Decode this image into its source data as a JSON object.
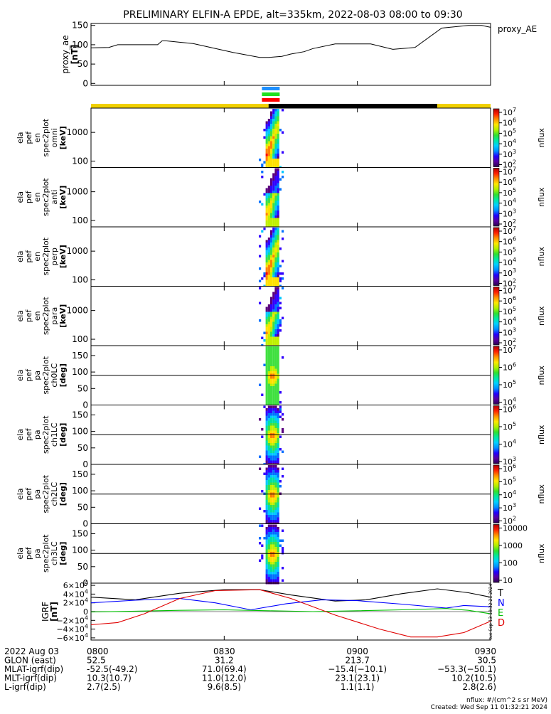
{
  "title": "PRELIMINARY ELFIN-A EPDE, alt=335km, 2022-08-03 08:00 to 09:30",
  "chart_data": [
    {
      "id": "proxy_ae",
      "type": "line",
      "ylabel": "proxy_ae",
      "yunit": "[nT]",
      "legend": "proxy_AE",
      "ylim": [
        -5,
        155
      ],
      "yticks": [
        0,
        50,
        100,
        150
      ],
      "x": [
        0,
        4,
        6,
        7,
        15,
        16,
        17,
        23,
        32,
        38,
        40,
        43,
        45,
        48,
        50,
        55,
        63,
        68,
        72,
        73,
        79,
        85,
        88,
        90
      ],
      "values": [
        92,
        93,
        100,
        100,
        100,
        110,
        110,
        103,
        80,
        67,
        67,
        70,
        76,
        82,
        90,
        102,
        102,
        88,
        92,
        93,
        143,
        150,
        150,
        145
      ]
    },
    {
      "id": "status_bar",
      "type": "timeline",
      "science_zones": [
        "blue",
        "green",
        "red"
      ],
      "segments": [
        {
          "start": 0,
          "end": 40,
          "color": "#f0d000"
        },
        {
          "start": 40,
          "end": 78,
          "color": "#000000"
        },
        {
          "start": 78,
          "end": 90,
          "color": "#f0d000"
        }
      ],
      "science_start": 38.5,
      "science_end": 42.5
    },
    {
      "id": "spec_omni",
      "type": "heatmap",
      "ylabel_lines": [
        "ela",
        "pef",
        "en",
        "spec2plot",
        "omni",
        "[keV]"
      ],
      "yscale": "log",
      "yticks": [
        100,
        1000
      ],
      "ytick_labels": [
        "100",
        "1000"
      ],
      "zlabel": "nflux",
      "zticks": [
        "10^2",
        "10^3",
        "10^4",
        "10^5",
        "10^6",
        "10^7"
      ]
    },
    {
      "id": "spec_anti",
      "type": "heatmap",
      "ylabel_lines": [
        "ela",
        "pef",
        "en",
        "spec2plot",
        "anti",
        "[keV]"
      ],
      "yscale": "log",
      "yticks": [
        100,
        1000
      ],
      "ytick_labels": [
        "100",
        "1000"
      ],
      "zlabel": "nflux",
      "zticks": [
        "10^2",
        "10^3",
        "10^4",
        "10^5",
        "10^6",
        "10^7"
      ]
    },
    {
      "id": "spec_perp",
      "type": "heatmap",
      "ylabel_lines": [
        "ela",
        "pef",
        "en",
        "spec2plot",
        "perp",
        "[keV]"
      ],
      "yscale": "log",
      "yticks": [
        100,
        1000
      ],
      "ytick_labels": [
        "100",
        "1000"
      ],
      "zlabel": "nflux",
      "zticks": [
        "10^2",
        "10^3",
        "10^4",
        "10^5",
        "10^6",
        "10^7"
      ]
    },
    {
      "id": "spec_para",
      "type": "heatmap",
      "ylabel_lines": [
        "ela",
        "pef",
        "en",
        "spec2plot",
        "para",
        "[keV]"
      ],
      "yscale": "log",
      "yticks": [
        100,
        1000
      ],
      "ytick_labels": [
        "100",
        "1000"
      ],
      "zlabel": "nflux",
      "zticks": [
        "10^2",
        "10^3",
        "10^4",
        "10^5",
        "10^6",
        "10^7"
      ]
    },
    {
      "id": "pa_ch0",
      "type": "heatmap",
      "ylabel_lines": [
        "ela",
        "pef",
        "pa",
        "spec2plot",
        "ch0LC",
        "[deg]"
      ],
      "ylim": [
        0,
        180
      ],
      "yticks": [
        0,
        50,
        100,
        150
      ],
      "ytick_labels": [
        "0",
        "50",
        "100",
        "150"
      ],
      "zlabel": "nflux",
      "zticks": [
        "10^4",
        "10^5",
        "10^6",
        "10^7"
      ]
    },
    {
      "id": "pa_ch1",
      "type": "heatmap",
      "ylabel_lines": [
        "ela",
        "pef",
        "pa",
        "spec2plot",
        "ch1LC",
        "[deg]"
      ],
      "ylim": [
        0,
        180
      ],
      "yticks": [
        0,
        50,
        100,
        150
      ],
      "ytick_labels": [
        "0",
        "50",
        "100",
        "150"
      ],
      "zlabel": "nflux",
      "zticks": [
        "10^3",
        "10^4",
        "10^5",
        "10^6"
      ]
    },
    {
      "id": "pa_ch2",
      "type": "heatmap",
      "ylabel_lines": [
        "ela",
        "pef",
        "pa",
        "spec2plot",
        "ch2LC",
        "[deg]"
      ],
      "ylim": [
        0,
        180
      ],
      "yticks": [
        0,
        50,
        100,
        150
      ],
      "ytick_labels": [
        "0",
        "50",
        "100",
        "150"
      ],
      "zlabel": "nflux",
      "zticks": [
        "10^2",
        "10^3",
        "10^4",
        "10^5",
        "10^6"
      ]
    },
    {
      "id": "pa_ch3",
      "type": "heatmap",
      "ylabel_lines": [
        "ela",
        "pef",
        "pa",
        "spec2plot",
        "ch3LC",
        "[deg]"
      ],
      "ylim": [
        0,
        180
      ],
      "yticks": [
        0,
        50,
        100,
        150
      ],
      "ytick_labels": [
        "0",
        "50",
        "100",
        "150"
      ],
      "zlabel": "nflux",
      "zticks": [
        "10",
        "100",
        "1000",
        "10000"
      ]
    },
    {
      "id": "igrf",
      "type": "line",
      "ylabel_lines": [
        "IGRF",
        "[nT]"
      ],
      "ylim": [
        -65000,
        65000
      ],
      "yticks": [
        -60000,
        -40000,
        -20000,
        0,
        20000,
        40000,
        60000
      ],
      "ytick_labels": [
        "−6×10^4",
        "−4×10^4",
        "−2×10^4",
        "0",
        "2×10^4",
        "4×10^4",
        "6×10^4"
      ],
      "side_note": "tue Sep 13 18:32:21 2024",
      "series": [
        {
          "name": "T",
          "color": "#000000",
          "x": [
            0,
            10,
            20,
            30,
            38,
            45,
            55,
            62,
            70,
            78,
            85,
            90
          ],
          "values": [
            33000,
            27000,
            42000,
            50000,
            50000,
            38000,
            24000,
            27000,
            41000,
            52000,
            43000,
            33000
          ]
        },
        {
          "name": "N",
          "color": "#0000ff",
          "x": [
            0,
            10,
            20,
            28,
            36,
            44,
            52,
            60,
            70,
            80,
            84,
            90
          ],
          "values": [
            20000,
            26000,
            30000,
            20000,
            4000,
            18000,
            27000,
            25000,
            17000,
            8000,
            14000,
            11000
          ]
        },
        {
          "name": "E",
          "color": "#00c000",
          "x": [
            0,
            10,
            20,
            30,
            40,
            50,
            60,
            70,
            80,
            85,
            90
          ],
          "values": [
            -1000,
            1000,
            3000,
            4000,
            2000,
            0,
            2000,
            4000,
            7000,
            3000,
            -5000
          ]
        },
        {
          "name": "D",
          "color": "#e00000",
          "x": [
            0,
            6,
            12,
            20,
            28,
            38,
            45,
            55,
            65,
            72,
            78,
            84,
            90
          ],
          "values": [
            -30000,
            -25000,
            -5000,
            30000,
            48000,
            50000,
            30000,
            -8000,
            -40000,
            -58000,
            -58000,
            -48000,
            -22000
          ]
        }
      ]
    }
  ],
  "xaxis": {
    "xlim": [
      0,
      90
    ],
    "ticks": [
      0,
      30,
      60,
      90
    ],
    "labels": [
      "0800",
      "0830",
      "0900",
      "0930"
    ],
    "rows": [
      {
        "label": "2022 Aug 03",
        "values": [
          "0800",
          "0830",
          "0900",
          "0930"
        ]
      },
      {
        "label": "GLON (east)",
        "values": [
          "52.5",
          "31.2",
          "213.7",
          "30.5"
        ]
      },
      {
        "label": "MLAT-igrf(dip)",
        "values": [
          "-52.5(-49.2)",
          "71.0(69.4)",
          "−15.4(−10.1)",
          "−53.3(−50.1)"
        ]
      },
      {
        "label": "MLT-igrf(dip)",
        "values": [
          "10.3(10.7)",
          "11.0(12.0)",
          "23.1(23.1)",
          "10.2(10.5)"
        ]
      },
      {
        "label": "L-igrf(dip)",
        "values": [
          "2.7(2.5)",
          "9.6(8.5)",
          "1.1(1.1)",
          "2.8(2.6)"
        ]
      }
    ]
  },
  "footer": {
    "units": "nflux: #/(cm^2 s sr MeV)",
    "created": "Created: Wed Sep 11 01:32:21 2024"
  }
}
